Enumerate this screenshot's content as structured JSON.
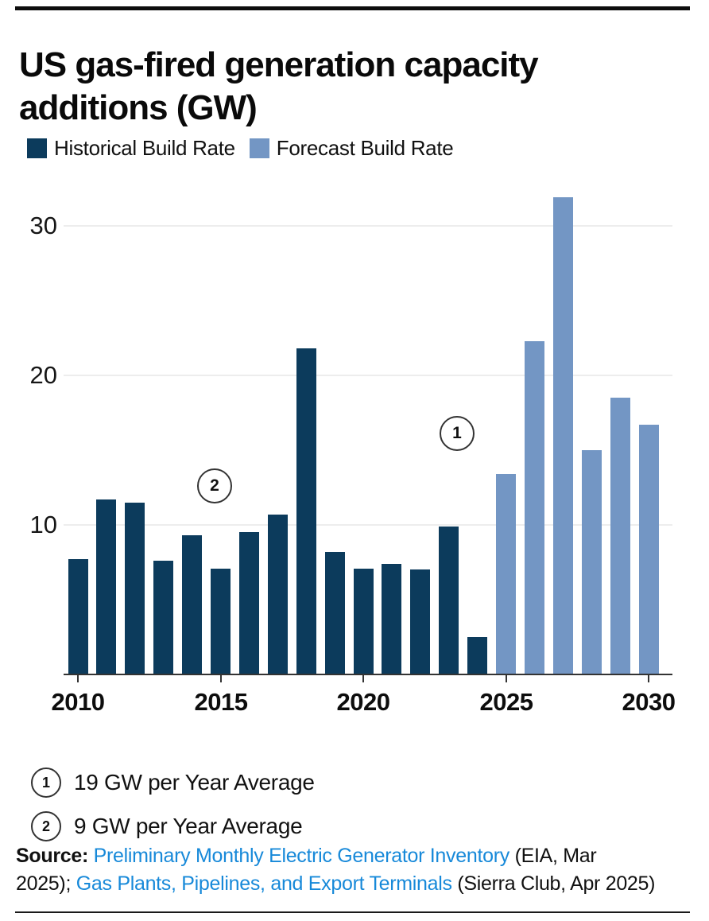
{
  "header": {
    "title": "US gas-fired generation capacity additions (GW)"
  },
  "legend": {
    "items": [
      {
        "label": "Historical Build Rate",
        "color": "#0c3b5c"
      },
      {
        "label": "Forecast Build Rate",
        "color": "#7396c4"
      }
    ]
  },
  "chart_data": {
    "type": "bar",
    "title": "US gas-fired generation capacity additions (GW)",
    "xlabel": "",
    "ylabel": "GW",
    "categories": [
      2010,
      2011,
      2012,
      2013,
      2014,
      2015,
      2016,
      2017,
      2018,
      2019,
      2020,
      2021,
      2022,
      2023,
      2024,
      2025,
      2026,
      2027,
      2028,
      2029,
      2030
    ],
    "series": [
      {
        "name": "Historical Build Rate",
        "color": "#0c3b5c",
        "start_year": 2010,
        "values": [
          7.7,
          11.7,
          11.5,
          7.6,
          9.3,
          7.1,
          9.5,
          10.7,
          21.8,
          8.2,
          7.1,
          7.4,
          7.0,
          9.9,
          2.5
        ]
      },
      {
        "name": "Forecast Build Rate",
        "color": "#7396c4",
        "start_year": 2025,
        "values": [
          13.4,
          22.3,
          31.9,
          15.0,
          18.5,
          16.7
        ]
      }
    ],
    "yticks": [
      10,
      20,
      30
    ],
    "xticks": [
      2010,
      2015,
      2020,
      2025,
      2030
    ],
    "ylim": [
      0,
      33
    ],
    "grid": "horizontal",
    "legend_position": "top",
    "annotations": [
      {
        "label": "1",
        "year": 2023.3,
        "gw": 16.1
      },
      {
        "label": "2",
        "year": 2014.8,
        "gw": 12.6
      }
    ]
  },
  "footnotes": [
    {
      "marker": "1",
      "text": "19 GW per Year Average"
    },
    {
      "marker": "2",
      "text": "9 GW per Year Average"
    }
  ],
  "source": {
    "segments": [
      {
        "text": "Source: ",
        "style": "bold"
      },
      {
        "text": "Preliminary Monthly Electric Generator Inventory",
        "style": "link",
        "name": "link-preliminary-inventory"
      },
      {
        "text": " (EIA, Mar",
        "style": "plain"
      },
      {
        "text": "",
        "style": "break"
      },
      {
        "text": "2025); ",
        "style": "plain"
      },
      {
        "text": "Gas Plants, Pipelines, and Export Terminals",
        "style": "link",
        "name": "link-gas-plants-report"
      },
      {
        "text": " (Sierra Club, Apr 2025)",
        "style": "plain"
      }
    ]
  }
}
